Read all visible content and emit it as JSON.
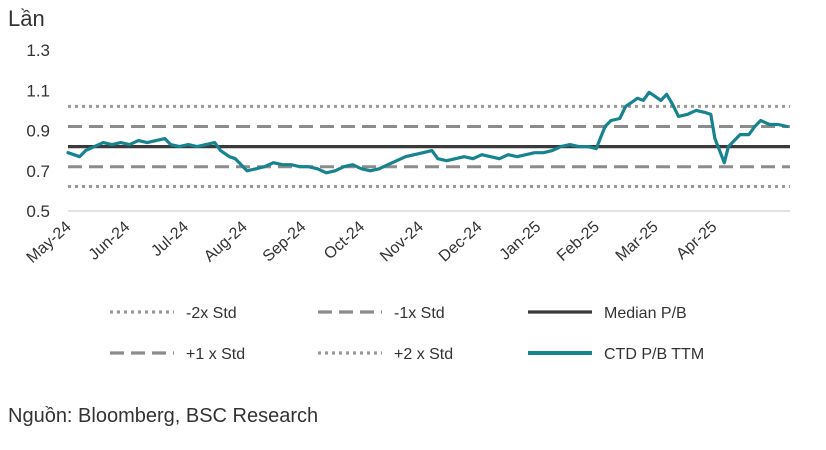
{
  "chart_data": {
    "type": "line",
    "ylabel": "Lần",
    "ylim": [
      0.5,
      1.35
    ],
    "yticks": [
      "0.5",
      "0.7",
      "0.9",
      "1.1",
      "1.3"
    ],
    "ytick_values": [
      0.5,
      0.7,
      0.9,
      1.1,
      1.3
    ],
    "x_tick_labels": [
      "May-24",
      "Jun-24",
      "Jul-24",
      "Aug-24",
      "Sep-24",
      "Oct-24",
      "Nov-24",
      "Dec-24",
      "Jan-25",
      "Feb-25",
      "Mar-25",
      "Apr-25"
    ],
    "grid": false,
    "legend_position": "bottom",
    "series": [
      {
        "name": "-2x Std",
        "style": "dotted",
        "color": "#999999",
        "values": [
          0.622,
          0.622,
          0.622,
          0.622,
          0.622,
          0.622,
          0.622,
          0.622,
          0.622,
          0.622,
          0.622,
          0.622
        ]
      },
      {
        "name": "-1x Std",
        "style": "dashed",
        "color": "#8c8c8c",
        "values": [
          0.72,
          0.72,
          0.72,
          0.72,
          0.72,
          0.72,
          0.72,
          0.72,
          0.72,
          0.72,
          0.72,
          0.72
        ]
      },
      {
        "name": "Median P/B",
        "style": "solid",
        "color": "#3a3a3a",
        "values": [
          0.82,
          0.82,
          0.82,
          0.82,
          0.82,
          0.82,
          0.82,
          0.82,
          0.82,
          0.82,
          0.82,
          0.82
        ]
      },
      {
        "name": "+1 x Std",
        "style": "dashed",
        "color": "#8c8c8c",
        "values": [
          0.92,
          0.92,
          0.92,
          0.92,
          0.92,
          0.92,
          0.92,
          0.92,
          0.92,
          0.92,
          0.92,
          0.92
        ]
      },
      {
        "name": "+2 x Std",
        "style": "dotted",
        "color": "#999999",
        "values": [
          1.02,
          1.02,
          1.02,
          1.02,
          1.02,
          1.02,
          1.02,
          1.02,
          1.02,
          1.02,
          1.02,
          1.02
        ]
      },
      {
        "name": "CTD P/B TTM",
        "style": "solid",
        "color": "#17838f",
        "values": [
          0.79,
          0.83,
          0.84,
          0.71,
          0.72,
          0.7,
          0.78,
          0.75,
          0.79,
          0.83,
          1.08,
          0.91
        ]
      }
    ],
    "ctd_points": [
      [
        0.0,
        0.79
      ],
      [
        0.1,
        0.78
      ],
      [
        0.2,
        0.77
      ],
      [
        0.3,
        0.8
      ],
      [
        0.45,
        0.82
      ],
      [
        0.6,
        0.84
      ],
      [
        0.75,
        0.83
      ],
      [
        0.9,
        0.84
      ],
      [
        1.05,
        0.83
      ],
      [
        1.2,
        0.85
      ],
      [
        1.35,
        0.84
      ],
      [
        1.5,
        0.85
      ],
      [
        1.65,
        0.86
      ],
      [
        1.75,
        0.83
      ],
      [
        1.9,
        0.82
      ],
      [
        2.05,
        0.83
      ],
      [
        2.2,
        0.82
      ],
      [
        2.35,
        0.83
      ],
      [
        2.5,
        0.84
      ],
      [
        2.6,
        0.8
      ],
      [
        2.75,
        0.77
      ],
      [
        2.85,
        0.76
      ],
      [
        2.95,
        0.73
      ],
      [
        3.05,
        0.7
      ],
      [
        3.2,
        0.71
      ],
      [
        3.35,
        0.72
      ],
      [
        3.5,
        0.74
      ],
      [
        3.65,
        0.73
      ],
      [
        3.8,
        0.73
      ],
      [
        3.95,
        0.72
      ],
      [
        4.1,
        0.72
      ],
      [
        4.25,
        0.71
      ],
      [
        4.4,
        0.69
      ],
      [
        4.55,
        0.7
      ],
      [
        4.7,
        0.72
      ],
      [
        4.85,
        0.73
      ],
      [
        5.0,
        0.71
      ],
      [
        5.15,
        0.7
      ],
      [
        5.3,
        0.71
      ],
      [
        5.45,
        0.73
      ],
      [
        5.6,
        0.75
      ],
      [
        5.75,
        0.77
      ],
      [
        5.9,
        0.78
      ],
      [
        6.05,
        0.79
      ],
      [
        6.2,
        0.8
      ],
      [
        6.3,
        0.76
      ],
      [
        6.45,
        0.75
      ],
      [
        6.6,
        0.76
      ],
      [
        6.75,
        0.77
      ],
      [
        6.9,
        0.76
      ],
      [
        7.05,
        0.78
      ],
      [
        7.2,
        0.77
      ],
      [
        7.35,
        0.76
      ],
      [
        7.5,
        0.78
      ],
      [
        7.65,
        0.77
      ],
      [
        7.8,
        0.78
      ],
      [
        7.95,
        0.79
      ],
      [
        8.1,
        0.79
      ],
      [
        8.25,
        0.8
      ],
      [
        8.4,
        0.82
      ],
      [
        8.55,
        0.83
      ],
      [
        8.7,
        0.82
      ],
      [
        8.85,
        0.82
      ],
      [
        9.0,
        0.81
      ],
      [
        9.08,
        0.87
      ],
      [
        9.15,
        0.92
      ],
      [
        9.25,
        0.95
      ],
      [
        9.4,
        0.96
      ],
      [
        9.5,
        1.02
      ],
      [
        9.6,
        1.04
      ],
      [
        9.7,
        1.06
      ],
      [
        9.8,
        1.05
      ],
      [
        9.9,
        1.09
      ],
      [
        10.0,
        1.07
      ],
      [
        10.1,
        1.05
      ],
      [
        10.2,
        1.08
      ],
      [
        10.3,
        1.03
      ],
      [
        10.4,
        0.97
      ],
      [
        10.55,
        0.98
      ],
      [
        10.7,
        1.0
      ],
      [
        10.85,
        0.99
      ],
      [
        10.95,
        0.98
      ],
      [
        11.02,
        0.86
      ],
      [
        11.1,
        0.8
      ],
      [
        11.18,
        0.74
      ],
      [
        11.25,
        0.82
      ],
      [
        11.35,
        0.85
      ],
      [
        11.45,
        0.88
      ],
      [
        11.6,
        0.88
      ],
      [
        11.7,
        0.92
      ],
      [
        11.8,
        0.95
      ],
      [
        11.95,
        0.93
      ],
      [
        12.1,
        0.93
      ],
      [
        12.25,
        0.92
      ]
    ]
  },
  "source_note": "Nguồn: Bloomberg, BSC Research"
}
